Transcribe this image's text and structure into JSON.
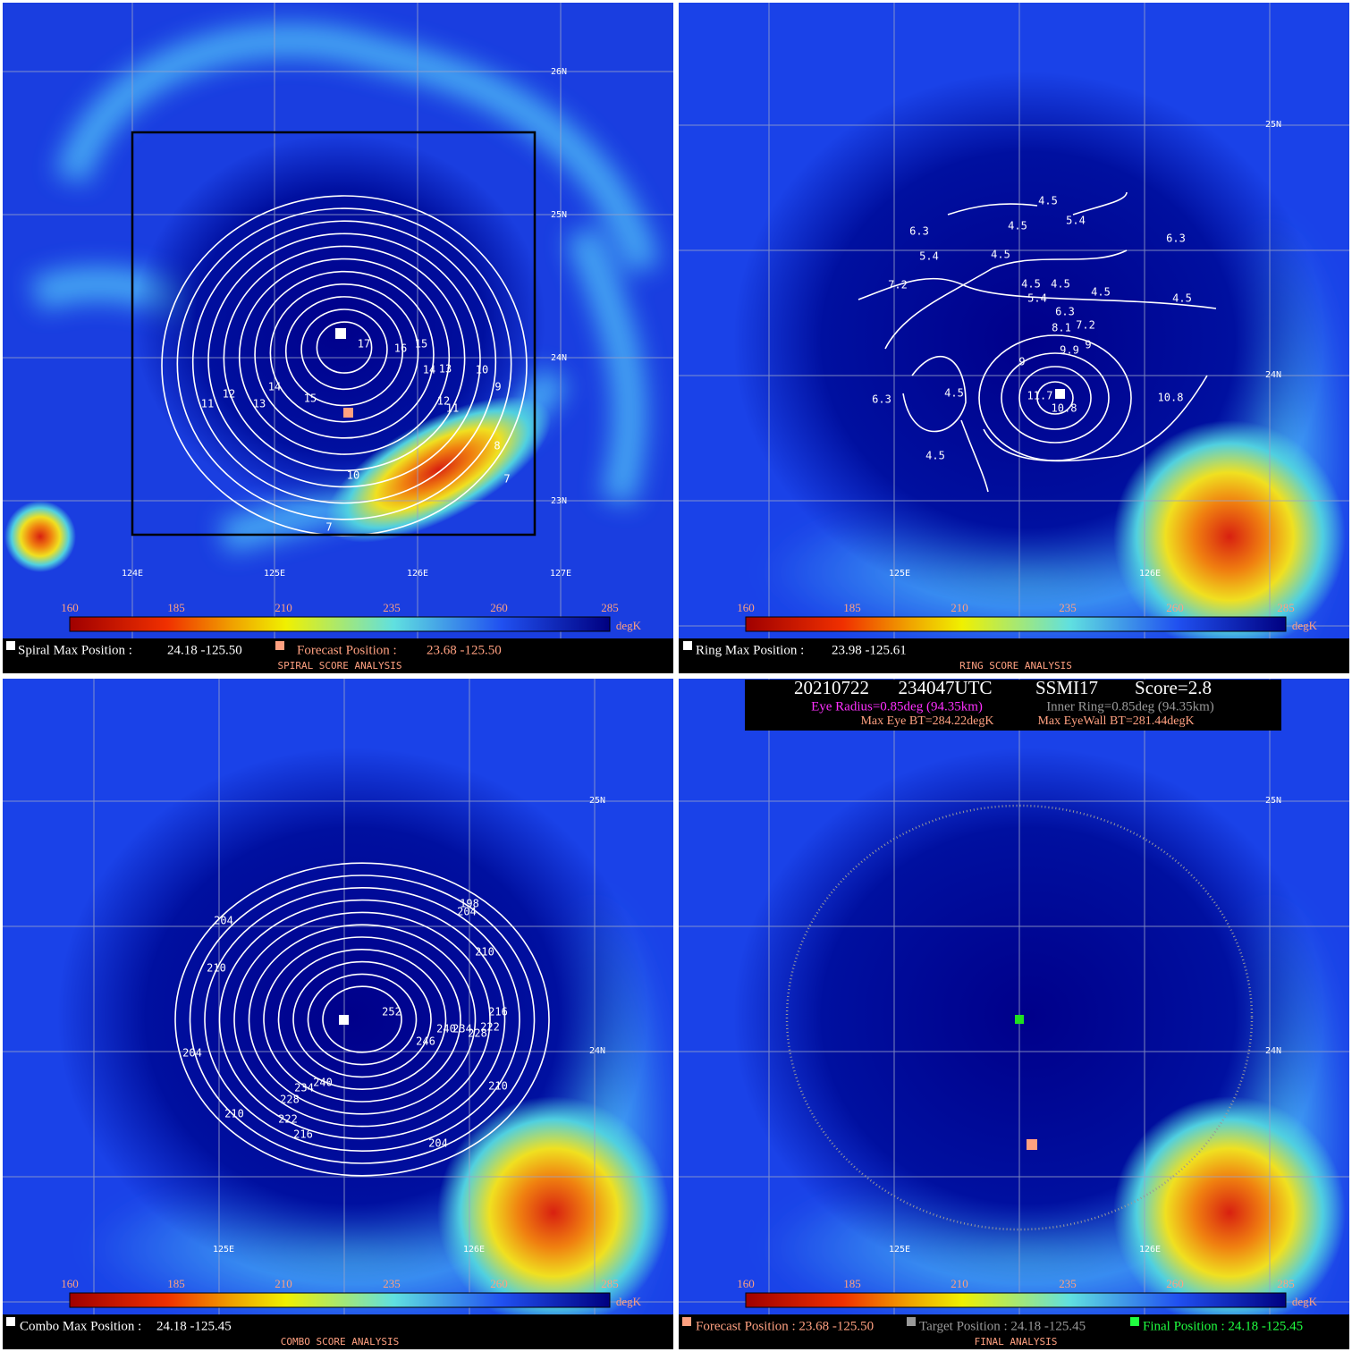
{
  "colorbar": {
    "ticks": [
      160,
      185,
      210,
      235,
      260,
      285
    ],
    "unit": "degK"
  },
  "header": {
    "date": "20210722",
    "time": "234047UTC",
    "sensor": "SSMI17",
    "score": "Score=2.8",
    "eye_radius": "Eye Radius=0.85deg (94.35km)",
    "inner_ring": "Inner Ring=0.85deg (94.35km)",
    "max_eye_bt": "Max Eye BT=284.22degK",
    "max_eyewall_bt": "Max EyeWall BT=281.44degK"
  },
  "panels": [
    {
      "title": "SPIRAL SCORE ANALYSIS",
      "info": [
        "Spiral Max Position :",
        "24.18 -125.50",
        "Forecast Position :",
        "23.68 -125.50"
      ],
      "lat_labels": [
        "26N",
        "25N",
        "24N",
        "23N"
      ],
      "lon_labels": [
        "124E",
        "125E",
        "126E",
        "127E"
      ],
      "contour_labels": [
        17,
        16,
        15,
        14,
        13,
        10,
        9,
        12,
        11,
        8,
        7,
        10,
        7,
        15,
        14,
        13,
        12,
        11
      ]
    },
    {
      "title": "RING SCORE ANALYSIS",
      "info": [
        "Ring Max Position :",
        "23.98 -125.61"
      ],
      "lat_labels": [
        "25N",
        "24N"
      ],
      "lon_labels": [
        "125E",
        "126E"
      ],
      "contour_labels": [
        4.5,
        4.5,
        5.4,
        6.3,
        6.3,
        5.4,
        4.5,
        7.2,
        4.5,
        4.5,
        4.5,
        4.5,
        5.4,
        6.3,
        8.1,
        7.2,
        9,
        9.9,
        9,
        6.3,
        4.5,
        11.7,
        10.8,
        10.8,
        4.5
      ]
    },
    {
      "title": "COMBO SCORE ANALYSIS",
      "info": [
        "Combo Max Position :",
        "24.18 -125.45"
      ],
      "lat_labels": [
        "25N",
        "24N"
      ],
      "lon_labels": [
        "125E",
        "126E"
      ],
      "contour_labels": [
        198,
        204,
        204,
        210,
        210,
        252,
        216,
        240,
        234,
        228,
        222,
        246,
        204,
        240,
        234,
        210,
        228,
        210,
        222,
        216,
        204
      ]
    },
    {
      "title": "FINAL ANALYSIS",
      "info": [
        "Forecast Position : 23.68 -125.50",
        "Target Position : 24.18 -125.45",
        "Final Position : 24.18 -125.45"
      ],
      "lat_labels": [
        "25N",
        "24N"
      ],
      "lon_labels": [
        "125E",
        "126E"
      ],
      "contour_labels": []
    }
  ]
}
